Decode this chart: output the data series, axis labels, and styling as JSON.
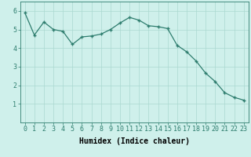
{
  "x": [
    0,
    1,
    2,
    3,
    4,
    5,
    6,
    7,
    8,
    9,
    10,
    11,
    12,
    13,
    14,
    15,
    16,
    17,
    18,
    19,
    20,
    21,
    22,
    23
  ],
  "y": [
    5.9,
    4.7,
    5.4,
    5.0,
    4.9,
    4.2,
    4.6,
    4.65,
    4.75,
    5.0,
    5.35,
    5.65,
    5.5,
    5.2,
    5.15,
    5.05,
    4.15,
    3.8,
    3.3,
    2.65,
    2.2,
    1.6,
    1.35,
    1.2
  ],
  "line_color": "#2e7d6e",
  "marker": "+",
  "marker_size": 3.5,
  "linewidth": 0.9,
  "bg_color": "#cff0eb",
  "grid_color": "#aad8d0",
  "xlabel": "Humidex (Indice chaleur)",
  "ylim": [
    0,
    6.5
  ],
  "xlim": [
    -0.5,
    23.5
  ],
  "yticks": [
    1,
    2,
    3,
    4,
    5,
    6
  ],
  "xticks": [
    0,
    1,
    2,
    3,
    4,
    5,
    6,
    7,
    8,
    9,
    10,
    11,
    12,
    13,
    14,
    15,
    16,
    17,
    18,
    19,
    20,
    21,
    22,
    23
  ],
  "tick_fontsize": 6,
  "xlabel_fontsize": 7,
  "spine_color": "#2e7d6e"
}
